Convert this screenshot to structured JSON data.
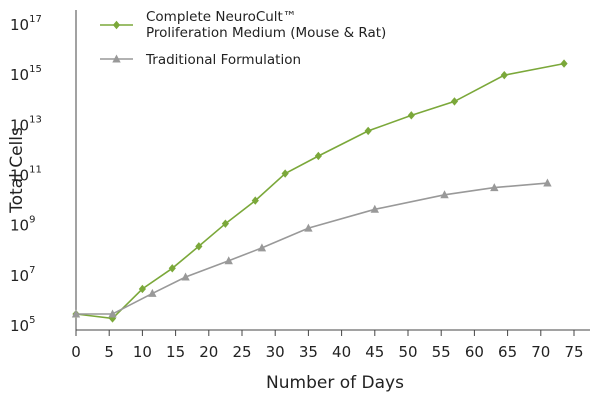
{
  "chart_data": {
    "type": "line",
    "title": "",
    "xlabel": "Number of Days",
    "ylabel": "Total Cells",
    "x_ticks": [
      0,
      5,
      10,
      15,
      20,
      25,
      30,
      35,
      40,
      45,
      50,
      55,
      60,
      65,
      70,
      75
    ],
    "y_ticks": [
      {
        "base": "10",
        "exp": "5",
        "value": 100000
      },
      {
        "base": "10",
        "exp": "7",
        "value": 10000000
      },
      {
        "base": "10",
        "exp": "9",
        "value": 1000000000
      },
      {
        "base": "10",
        "exp": "11",
        "value": 100000000000
      },
      {
        "base": "10",
        "exp": "13",
        "value": 10000000000000
      },
      {
        "base": "10",
        "exp": "15",
        "value": 1000000000000000
      },
      {
        "base": "10",
        "exp": "17",
        "value": 100000000000000000
      }
    ],
    "xlim": [
      0,
      75
    ],
    "ylim": [
      100000,
      100000000000000000
    ],
    "y_scale": "log",
    "grid": false,
    "legend_position": "top-left",
    "series": [
      {
        "name": "Complete NeuroCult™ Proliferation Medium (Mouse & Rat)",
        "color": "#7ba83a",
        "marker": "diamond",
        "points": [
          [
            0,
            300000
          ],
          [
            5.5,
            200000
          ],
          [
            10,
            3000000
          ],
          [
            14.5,
            20000000
          ],
          [
            18.5,
            150000000
          ],
          [
            22.5,
            1200000000
          ],
          [
            27,
            10000000000
          ],
          [
            31.5,
            120000000000
          ],
          [
            36.5,
            600000000000
          ],
          [
            44,
            6000000000000
          ],
          [
            50.5,
            25000000000000
          ],
          [
            57,
            90000000000000
          ],
          [
            64.5,
            1000000000000000
          ],
          [
            73.5,
            2900000000000000
          ]
        ]
      },
      {
        "name": "Traditional Formulation",
        "color": "#999999",
        "marker": "triangle",
        "points": [
          [
            0,
            300000
          ],
          [
            5.5,
            300000
          ],
          [
            11.5,
            2000000
          ],
          [
            16.5,
            9000000
          ],
          [
            23,
            40000000
          ],
          [
            28,
            130000000
          ],
          [
            35,
            800000000
          ],
          [
            45,
            4500000000
          ],
          [
            55.5,
            17000000000
          ],
          [
            63,
            33000000000
          ],
          [
            71,
            50000000000
          ]
        ]
      }
    ]
  }
}
